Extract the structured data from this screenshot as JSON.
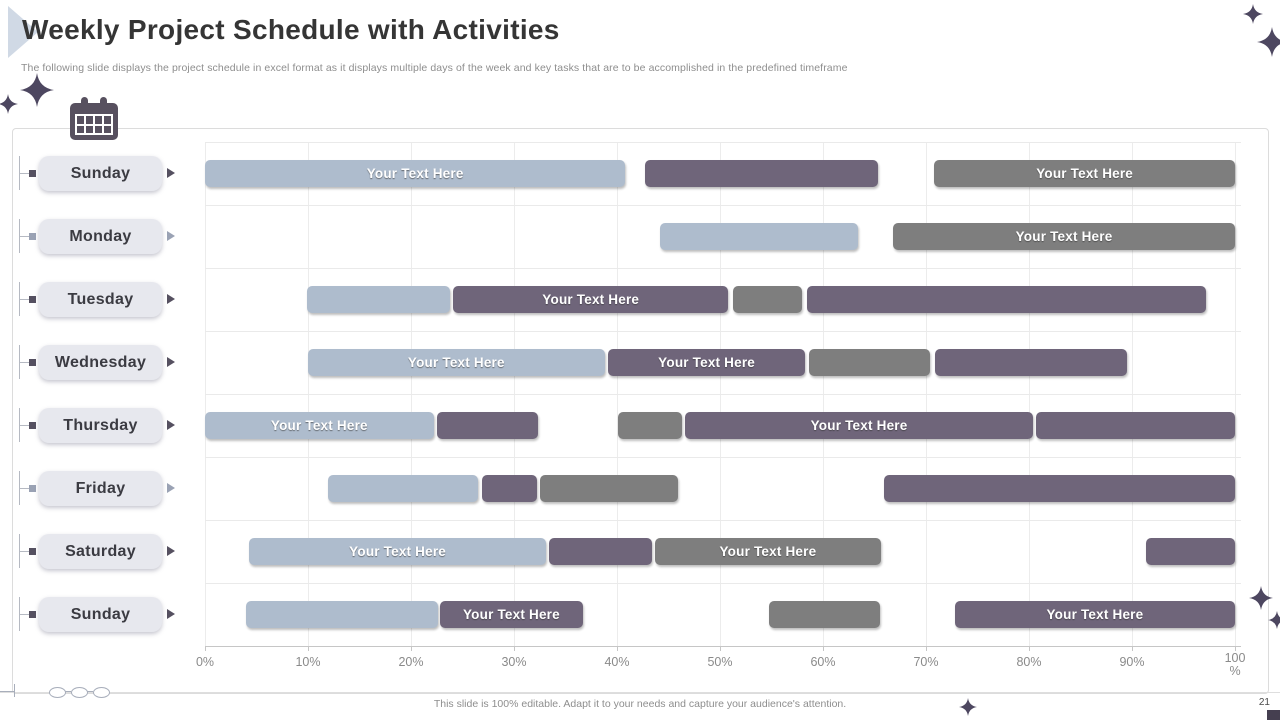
{
  "header": {
    "title": "Weekly Project Schedule with Activities",
    "subtitle": "The following slide displays the project schedule in excel format as it displays multiple days of the week and key tasks that are to  be accomplished in the predefined timeframe"
  },
  "colors": {
    "bar_light": "#aebccd",
    "bar_purple": "#6f657a",
    "bar_gray": "#7e7e7e",
    "pill_bg": "#e7e8ee",
    "accent_dark": "#4d4760",
    "connector_dark": "#555060",
    "connector_light": "#9aa2b4"
  },
  "icons": {
    "calendar": "calendar-icon",
    "sparkle": "sparkle-star-icon",
    "row_arrow": "chevron-right-icon"
  },
  "chart_data": {
    "type": "gantt",
    "title": "Weekly Project Schedule with Activities",
    "bar_label": "Your Text Here",
    "x_axis": {
      "min": 0,
      "max": 100,
      "grid": true,
      "ticks": [
        {
          "value": 0,
          "label": "0%"
        },
        {
          "value": 10,
          "label": "10%"
        },
        {
          "value": 20,
          "label": "20%"
        },
        {
          "value": 30,
          "label": "30%"
        },
        {
          "value": 40,
          "label": "40%"
        },
        {
          "value": 50,
          "label": "50%"
        },
        {
          "value": 60,
          "label": "60%"
        },
        {
          "value": 70,
          "label": "70%"
        },
        {
          "value": 80,
          "label": "80%"
        },
        {
          "value": 90,
          "label": "90%"
        },
        {
          "value": 100,
          "label": "100 %"
        }
      ]
    },
    "rows": [
      {
        "day": "Sunday",
        "marker": "dark",
        "bars": [
          {
            "color": "light",
            "start": 0,
            "end": 40.8,
            "labeled": true
          },
          {
            "color": "purple",
            "start": 42.7,
            "end": 65.3,
            "labeled": false
          },
          {
            "color": "gray",
            "start": 70.8,
            "end": 100,
            "labeled": true
          }
        ]
      },
      {
        "day": "Monday",
        "marker": "light",
        "bars": [
          {
            "color": "light",
            "start": 44.2,
            "end": 63.4,
            "labeled": false
          },
          {
            "color": "gray",
            "start": 66.8,
            "end": 100,
            "labeled": true
          }
        ]
      },
      {
        "day": "Tuesday",
        "marker": "dark",
        "bars": [
          {
            "color": "light",
            "start": 9.9,
            "end": 23.8,
            "labeled": false
          },
          {
            "color": "purple",
            "start": 24.1,
            "end": 50.8,
            "labeled": true
          },
          {
            "color": "gray",
            "start": 51.3,
            "end": 58.0,
            "labeled": false
          },
          {
            "color": "purple",
            "start": 58.4,
            "end": 97.2,
            "labeled": false
          }
        ]
      },
      {
        "day": "Wednesday",
        "marker": "dark",
        "bars": [
          {
            "color": "light",
            "start": 10.0,
            "end": 38.8,
            "labeled": true
          },
          {
            "color": "purple",
            "start": 39.1,
            "end": 58.3,
            "labeled": true
          },
          {
            "color": "gray",
            "start": 58.6,
            "end": 70.4,
            "labeled": false
          },
          {
            "color": "purple",
            "start": 70.9,
            "end": 89.5,
            "labeled": false
          }
        ]
      },
      {
        "day": "Thursday",
        "marker": "dark",
        "bars": [
          {
            "color": "light",
            "start": 0,
            "end": 22.2,
            "labeled": true
          },
          {
            "color": "purple",
            "start": 22.5,
            "end": 32.3,
            "labeled": false
          },
          {
            "color": "gray",
            "start": 40.1,
            "end": 46.3,
            "labeled": false
          },
          {
            "color": "purple",
            "start": 46.6,
            "end": 80.4,
            "labeled": true
          },
          {
            "color": "purple",
            "start": 80.7,
            "end": 100,
            "labeled": false
          }
        ]
      },
      {
        "day": "Friday",
        "marker": "light",
        "bars": [
          {
            "color": "light",
            "start": 11.9,
            "end": 26.5,
            "labeled": false
          },
          {
            "color": "purple",
            "start": 26.9,
            "end": 32.2,
            "labeled": false
          },
          {
            "color": "gray",
            "start": 32.5,
            "end": 45.9,
            "labeled": false
          },
          {
            "color": "purple",
            "start": 65.9,
            "end": 100,
            "labeled": false
          }
        ]
      },
      {
        "day": "Saturday",
        "marker": "dark",
        "bars": [
          {
            "color": "light",
            "start": 4.3,
            "end": 33.1,
            "labeled": true
          },
          {
            "color": "purple",
            "start": 33.4,
            "end": 43.4,
            "labeled": false
          },
          {
            "color": "gray",
            "start": 43.7,
            "end": 65.6,
            "labeled": true
          },
          {
            "color": "purple",
            "start": 91.4,
            "end": 100,
            "labeled": false
          }
        ]
      },
      {
        "day": "Sunday",
        "marker": "dark",
        "bars": [
          {
            "color": "light",
            "start": 4.0,
            "end": 22.6,
            "labeled": false
          },
          {
            "color": "purple",
            "start": 22.8,
            "end": 36.7,
            "labeled": true
          },
          {
            "color": "gray",
            "start": 54.8,
            "end": 65.5,
            "labeled": false
          },
          {
            "color": "purple",
            "start": 72.8,
            "end": 100,
            "labeled": true
          }
        ]
      }
    ]
  },
  "footer": {
    "note": "This slide is 100% editable. Adapt it to your needs and capture your audience's attention.",
    "page_number": "21"
  }
}
